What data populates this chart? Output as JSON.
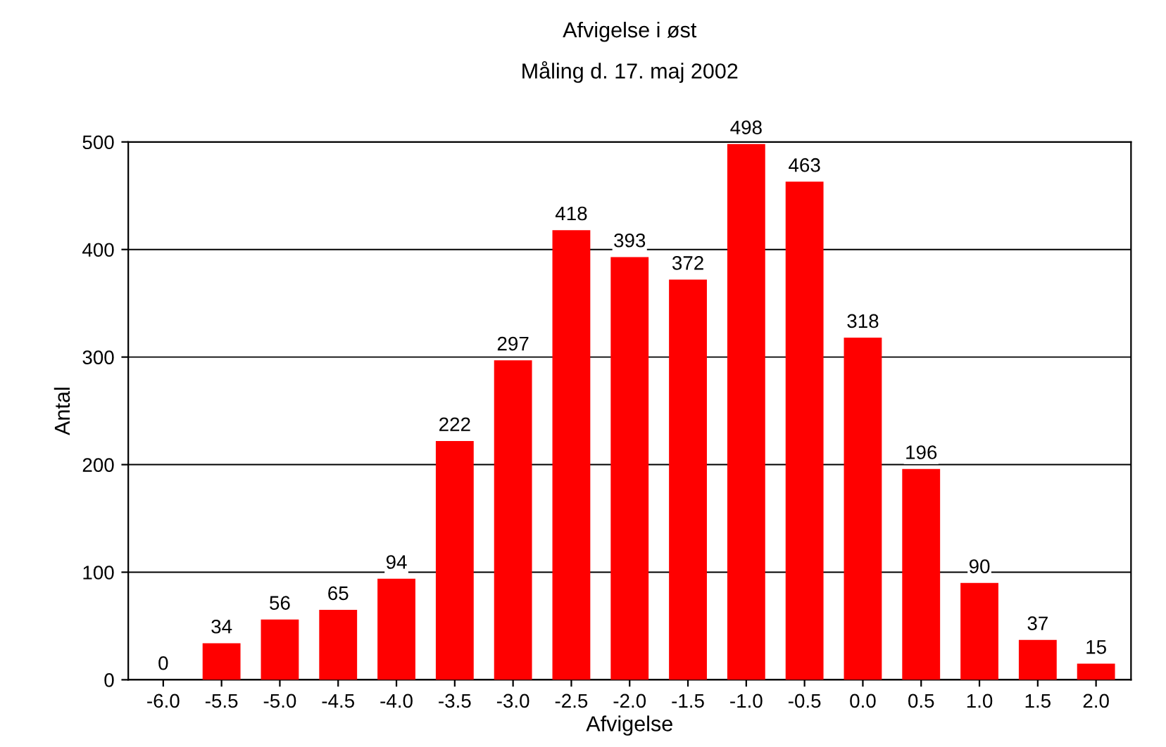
{
  "chart_data": {
    "type": "bar",
    "title": "Afvigelse i øst",
    "subtitle": "Måling d. 17. maj 2002",
    "xlabel": "Afvigelse",
    "ylabel": "Antal",
    "categories": [
      "-6.0",
      "-5.5",
      "-5.0",
      "-4.5",
      "-4.0",
      "-3.5",
      "-3.0",
      "-2.5",
      "-2.0",
      "-1.5",
      "-1.0",
      "-0.5",
      "0.0",
      "0.5",
      "1.0",
      "1.5",
      "2.0"
    ],
    "values": [
      0,
      34,
      56,
      65,
      94,
      222,
      297,
      418,
      393,
      372,
      498,
      463,
      318,
      196,
      90,
      37,
      15
    ],
    "color": "#ff0000",
    "ylim": [
      0,
      500
    ],
    "yticks": [
      0,
      100,
      200,
      300,
      400,
      500
    ],
    "grid": "y",
    "data_labels": true
  }
}
